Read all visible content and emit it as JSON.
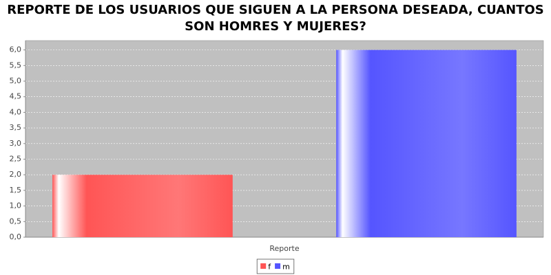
{
  "chart_data": {
    "type": "bar",
    "title": [
      "REPORTE DE LOS USUARIOS QUE SIGUEN A LA PERSONA DESEADA, CUANTOS",
      "SON HOMRES Y MUJERES?"
    ],
    "categories": [
      "Reporte"
    ],
    "series": [
      {
        "name": "f",
        "color": "#ff5555",
        "values": [
          2
        ]
      },
      {
        "name": "m",
        "color": "#5555ff",
        "values": [
          6
        ]
      }
    ],
    "ylim": [
      0,
      6.3
    ],
    "yticks": [
      {
        "value": 0,
        "label": "0,0"
      },
      {
        "value": 0.5,
        "label": "0,5"
      },
      {
        "value": 1,
        "label": "1,0"
      },
      {
        "value": 1.5,
        "label": "1,5"
      },
      {
        "value": 2,
        "label": "2,0"
      },
      {
        "value": 2.5,
        "label": "2,5"
      },
      {
        "value": 3,
        "label": "3,0"
      },
      {
        "value": 3.5,
        "label": "3,5"
      },
      {
        "value": 4,
        "label": "4,0"
      },
      {
        "value": 4.5,
        "label": "4,5"
      },
      {
        "value": 5,
        "label": "5,0"
      },
      {
        "value": 5.5,
        "label": "5,5"
      },
      {
        "value": 6,
        "label": "6,0"
      }
    ],
    "grid": true,
    "legend": "bottom"
  }
}
